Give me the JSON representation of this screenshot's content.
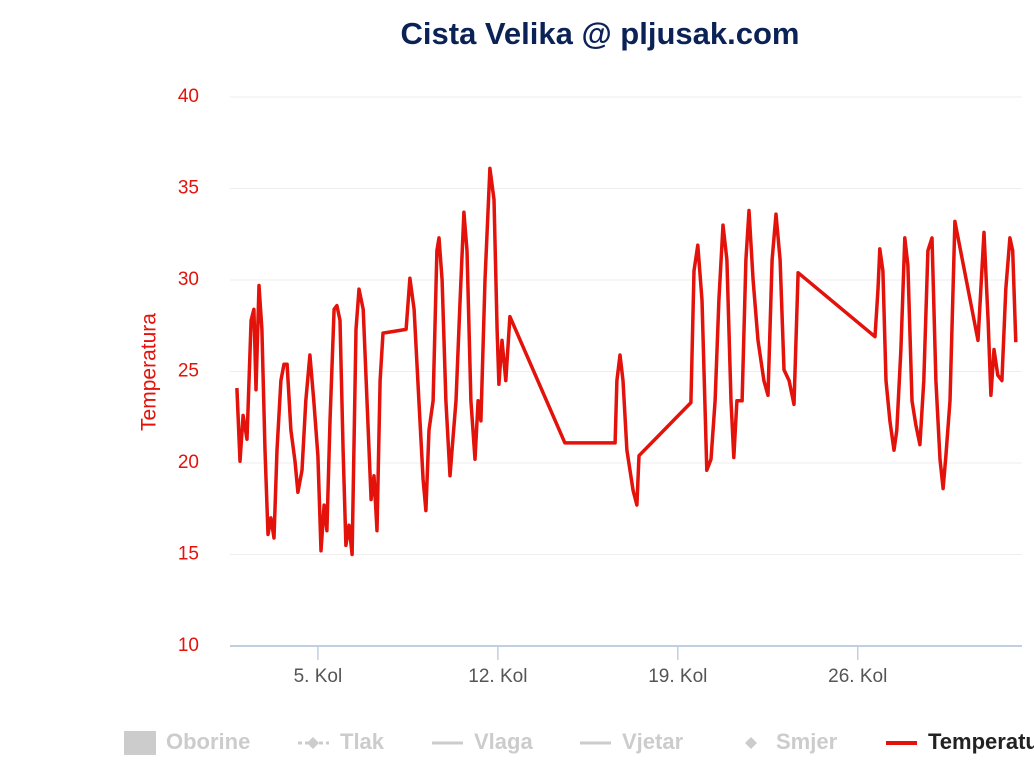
{
  "chart_data": {
    "type": "line",
    "title": "Cista Velika @ pljusak.com",
    "y_label": "Temperatura",
    "xlim": [
      1.58,
      32.39
    ],
    "xticks": [
      {
        "value": 5,
        "label": "5. Kol"
      },
      {
        "value": 12,
        "label": "12. Kol"
      },
      {
        "value": 19,
        "label": "19. Kol"
      },
      {
        "value": 26,
        "label": "26. Kol"
      }
    ],
    "ylim": [
      10,
      40
    ],
    "yticks": [
      10,
      15,
      20,
      25,
      30,
      35,
      40
    ],
    "grid": true,
    "legend": "bottom",
    "hidden_series": [
      {
        "name": "Oborine",
        "marker": "column"
      },
      {
        "name": "Tlak",
        "marker": "line-diamond"
      },
      {
        "name": "Vlaga",
        "marker": "line"
      },
      {
        "name": "Vjetar",
        "marker": "line"
      },
      {
        "name": "Smjer",
        "marker": "diamond"
      }
    ],
    "series": [
      {
        "name": "Temperatura",
        "color": "#e3120b",
        "x": [
          1.85,
          1.97,
          2.09,
          2.24,
          2.4,
          2.51,
          2.59,
          2.71,
          2.82,
          2.94,
          3.06,
          3.17,
          3.29,
          3.41,
          3.56,
          3.68,
          3.8,
          3.95,
          4.11,
          4.22,
          4.38,
          4.53,
          4.69,
          4.84,
          5.0,
          5.12,
          5.24,
          5.35,
          5.47,
          5.63,
          5.74,
          5.86,
          5.98,
          6.09,
          6.21,
          6.33,
          6.48,
          6.6,
          6.76,
          6.91,
          7.07,
          7.18,
          7.3,
          7.42,
          7.53,
          8.43,
          8.58,
          8.74,
          8.93,
          9.09,
          9.2,
          9.32,
          9.48,
          9.63,
          9.71,
          9.83,
          9.98,
          10.14,
          10.25,
          10.37,
          10.53,
          10.68,
          10.8,
          10.95,
          11.11,
          11.23,
          11.34,
          11.5,
          11.69,
          11.85,
          11.97,
          12.04,
          12.16,
          12.31,
          12.47,
          14.61,
          16.56,
          16.63,
          16.75,
          16.87,
          17.02,
          17.26,
          17.41,
          17.49,
          19.51,
          19.63,
          19.78,
          19.94,
          20.13,
          20.29,
          20.45,
          20.6,
          20.76,
          20.91,
          21.07,
          21.18,
          21.3,
          21.5,
          21.65,
          21.77,
          21.93,
          22.12,
          22.35,
          22.51,
          22.67,
          22.82,
          22.98,
          23.13,
          23.33,
          23.52,
          23.68,
          26.67,
          26.79,
          26.86,
          26.98,
          27.1,
          27.25,
          27.41,
          27.52,
          27.68,
          27.83,
          27.95,
          28.11,
          28.26,
          28.42,
          28.57,
          28.73,
          28.89,
          29.04,
          29.2,
          29.32,
          29.43,
          29.59,
          29.78,
          30.68,
          30.91,
          31.07,
          31.18,
          31.3,
          31.45,
          31.61,
          31.76,
          31.92,
          32.03,
          32.15
        ],
        "values": [
          24.1,
          20.1,
          22.6,
          21.3,
          27.8,
          28.4,
          24.0,
          29.7,
          27.3,
          20.7,
          16.1,
          17.0,
          15.9,
          20.7,
          24.5,
          25.4,
          25.4,
          21.8,
          20.1,
          18.4,
          19.6,
          23.4,
          25.9,
          23.4,
          20.4,
          15.2,
          17.7,
          16.3,
          22.3,
          28.4,
          28.6,
          27.8,
          20.7,
          15.5,
          16.6,
          15.0,
          27.3,
          29.5,
          28.4,
          23.4,
          18.0,
          19.3,
          16.3,
          24.5,
          27.1,
          27.3,
          30.1,
          28.4,
          23.4,
          19.1,
          17.4,
          21.8,
          23.4,
          31.6,
          32.3,
          30.0,
          23.4,
          19.3,
          21.3,
          23.4,
          28.9,
          33.7,
          31.6,
          23.4,
          20.2,
          23.4,
          22.3,
          30.0,
          36.1,
          34.4,
          27.3,
          24.3,
          26.7,
          24.5,
          28.0,
          21.1,
          21.1,
          24.5,
          25.9,
          24.5,
          20.7,
          18.5,
          17.7,
          20.4,
          23.3,
          30.5,
          31.9,
          28.9,
          19.6,
          20.2,
          23.4,
          28.9,
          33.0,
          31.1,
          23.4,
          20.3,
          23.4,
          23.4,
          31.1,
          33.8,
          30.0,
          26.7,
          24.5,
          23.7,
          31.1,
          33.6,
          31.1,
          25.1,
          24.5,
          23.2,
          30.4,
          26.9,
          29.5,
          31.7,
          30.5,
          24.5,
          22.3,
          20.7,
          21.8,
          26.2,
          32.3,
          30.8,
          23.4,
          22.1,
          21.0,
          24.5,
          31.6,
          32.3,
          24.5,
          20.2,
          18.6,
          20.4,
          23.4,
          33.2,
          26.7,
          32.6,
          27.8,
          23.7,
          26.2,
          24.8,
          24.5,
          29.5,
          32.3,
          31.6,
          26.6
        ]
      }
    ]
  }
}
